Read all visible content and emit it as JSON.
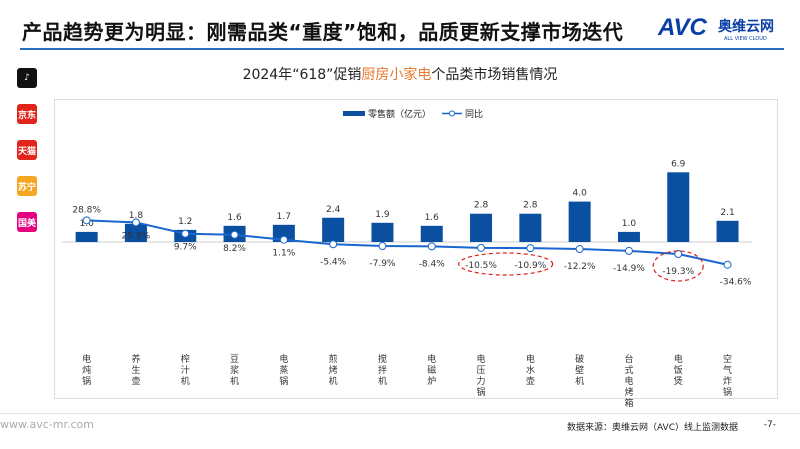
{
  "header": {
    "title": "产品趋势更为明显：刚需品类“重度”饱和，品质更新支撑市场迭代",
    "logo_text": "AVC",
    "logo_cn": "奥维云网",
    "logo_en": "ALL VIEW CLOUD"
  },
  "platforms": [
    {
      "name": "抖音",
      "icon": "tiktok-icon",
      "color": "#111111"
    },
    {
      "name": "京东",
      "icon": "jd-icon",
      "color": "#e1251b"
    },
    {
      "name": "天猫",
      "icon": "tmall-icon",
      "color": "#e1251b"
    },
    {
      "name": "苏宁易购",
      "icon": "suning-icon",
      "color": "#f5a623"
    },
    {
      "name": "国美",
      "icon": "gome-icon",
      "color": "#e4007f"
    }
  ],
  "chart_data": {
    "type": "bar+line",
    "title_prefix": "2024年“618”促销",
    "title_highlight": "厨房小家电",
    "title_suffix": "个品类市场销售情况",
    "categories": [
      "电炖锅",
      "养生壶",
      "榨汁机",
      "豆浆机",
      "电蒸锅",
      "煎烤机",
      "搅拌机",
      "电磁炉",
      "电压力锅",
      "电水壶",
      "破壁机",
      "台式电烤箱",
      "电饭煲",
      "空气炸锅"
    ],
    "series": [
      {
        "name": "零售额（亿元）",
        "type": "bar",
        "color": "#0a4fa0",
        "values": [
          1.0,
          1.8,
          1.2,
          1.6,
          1.7,
          2.4,
          1.9,
          1.6,
          2.8,
          2.8,
          4.0,
          1.0,
          6.9,
          2.1
        ],
        "labels": [
          "1.0",
          "1.8",
          "1.2",
          "1.6",
          "1.7",
          "2.4",
          "1.9",
          "1.6",
          "2.8",
          "2.8",
          "4.0",
          "1.0",
          "6.9",
          "2.1"
        ]
      },
      {
        "name": "同比",
        "type": "line",
        "color": "#1a66d0",
        "unit": "%",
        "values": [
          28.8,
          25.8,
          9.7,
          8.2,
          1.1,
          -5.4,
          -7.9,
          -8.4,
          -10.5,
          -10.9,
          -12.2,
          -14.9,
          -19.3,
          -34.6
        ],
        "labels": [
          "28.8%",
          "25.8%",
          "9.7%",
          "8.2%",
          "1.1%",
          "-5.4%",
          "-7.9%",
          "-8.4%",
          "-10.5%",
          "-10.9%",
          "-12.2%",
          "-14.9%",
          "-19.3%",
          "-34.6%"
        ]
      }
    ],
    "highlighted": [
      "电压力锅",
      "电水壶",
      "电饭煲"
    ],
    "highlight_color": "#e02020",
    "legend": "top-center",
    "grid": false
  },
  "footer": {
    "website": "www.avc-mr.com",
    "source": "数据来源：奥维云网（AVC）线上监测数据",
    "page": "-7-"
  }
}
